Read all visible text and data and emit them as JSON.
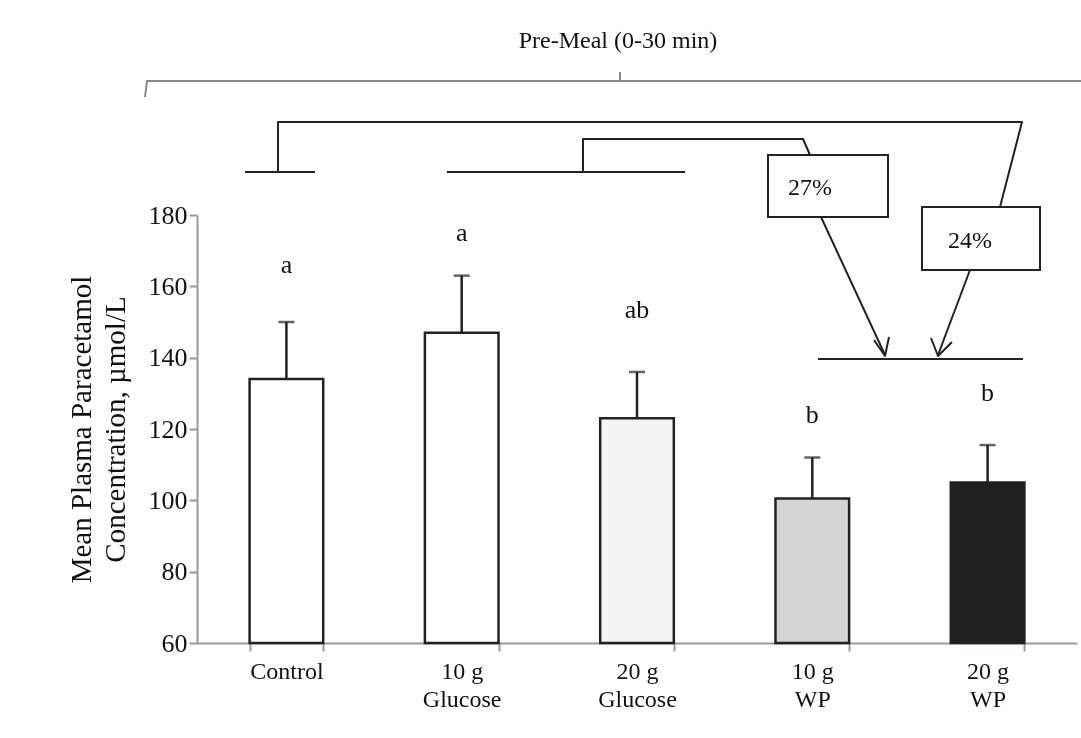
{
  "chart_data": {
    "type": "bar",
    "ylabel": "Mean Plasma Paracetamol\nConcentration, µmol/L",
    "categories": [
      "Control",
      "10 g\nGlucose",
      "20 g\nGlucose",
      "10 g\nWP",
      "20 g\nWP"
    ],
    "values": [
      134,
      147,
      123,
      100.5,
      105
    ],
    "colors": [
      "#ffffff",
      "#ffffff",
      "#f4f4f4",
      "#d4d4d4",
      "#231f20"
    ],
    "errors": [
      [
        134,
        150
      ],
      [
        147,
        163
      ],
      [
        123,
        136
      ],
      [
        100.5,
        112
      ],
      [
        105,
        115.5
      ]
    ],
    "ylim": [
      60,
      180
    ],
    "yticks": [
      60,
      80,
      100,
      120,
      140,
      160,
      180
    ],
    "grid": false,
    "annotations": [
      "Pre-Meal (0-30 min)",
      "27%",
      "24%",
      "a",
      "a",
      "ab",
      "b",
      "b"
    ]
  }
}
